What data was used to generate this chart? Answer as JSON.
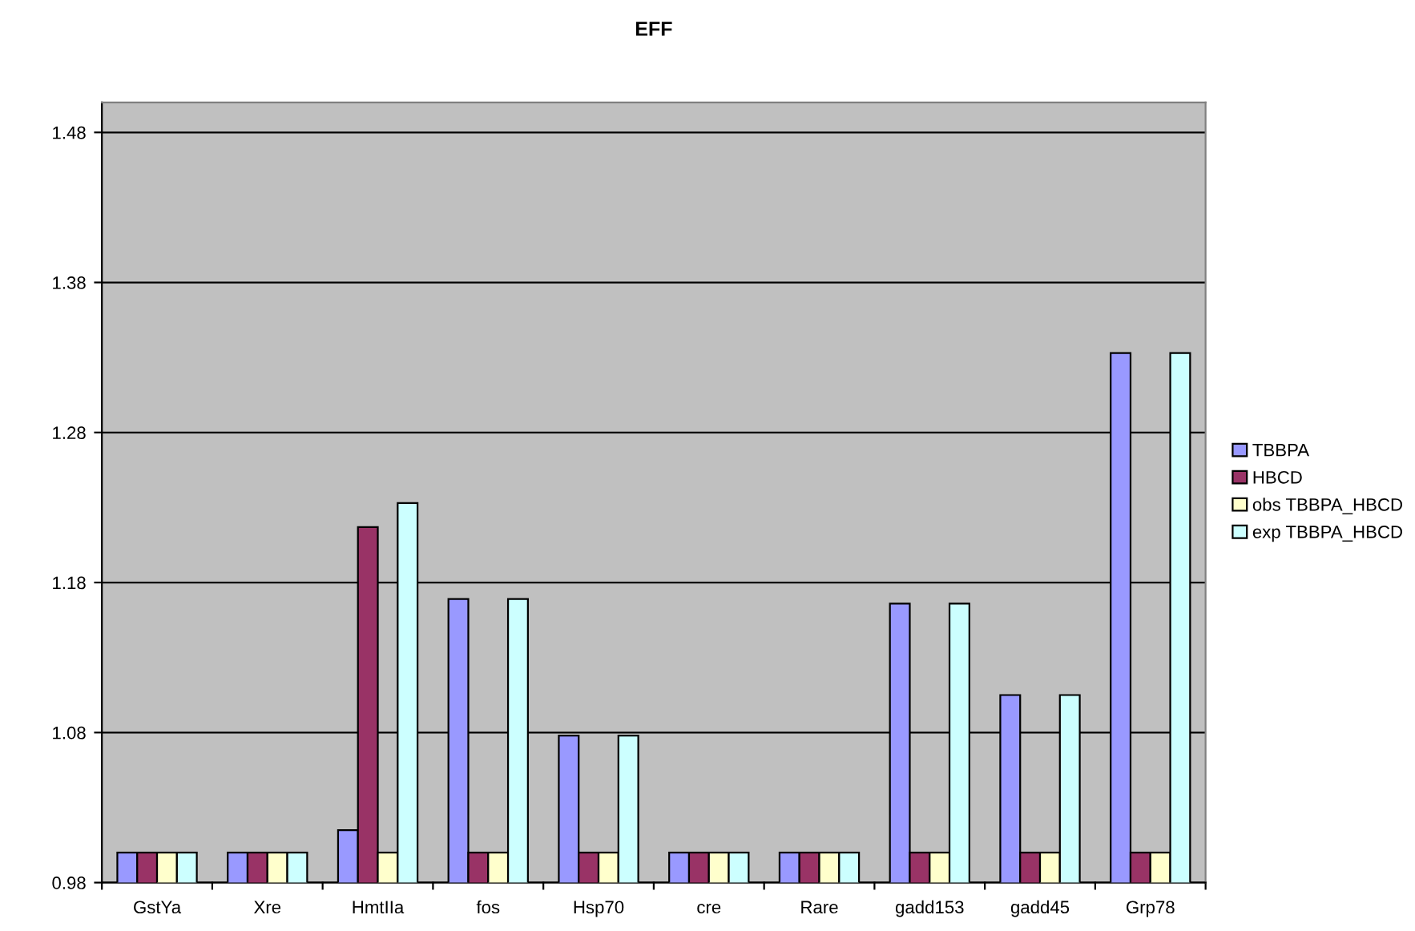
{
  "chart_data": {
    "type": "bar",
    "title": "EFF",
    "categories": [
      "GstYa",
      "Xre",
      "HmtIIa",
      "fos",
      "Hsp70",
      "cre",
      "Rare",
      "gadd153",
      "gadd45",
      "Grp78"
    ],
    "series": [
      {
        "name": "TBBPA",
        "color": "#9999ff",
        "values": [
          1.0,
          1.0,
          1.015,
          1.169,
          1.078,
          1.0,
          1.0,
          1.166,
          1.105,
          1.333
        ]
      },
      {
        "name": "HBCD",
        "color": "#993366",
        "values": [
          1.0,
          1.0,
          1.217,
          1.0,
          1.0,
          1.0,
          1.0,
          1.0,
          1.0,
          1.0
        ]
      },
      {
        "name": "obs TBBPA_HBCD",
        "color": "#ffffcc",
        "values": [
          1.0,
          1.0,
          1.0,
          1.0,
          1.0,
          1.0,
          1.0,
          1.0,
          1.0,
          1.0
        ]
      },
      {
        "name": "exp TBBPA_HBCD",
        "color": "#ccffff",
        "values": [
          1.0,
          1.0,
          1.233,
          1.169,
          1.078,
          1.0,
          1.0,
          1.166,
          1.105,
          1.333
        ]
      }
    ],
    "ylim": [
      0.98,
      1.5
    ],
    "yticks": [
      0.98,
      1.08,
      1.18,
      1.28,
      1.38,
      1.48
    ],
    "grid": "y",
    "legend": "right"
  }
}
